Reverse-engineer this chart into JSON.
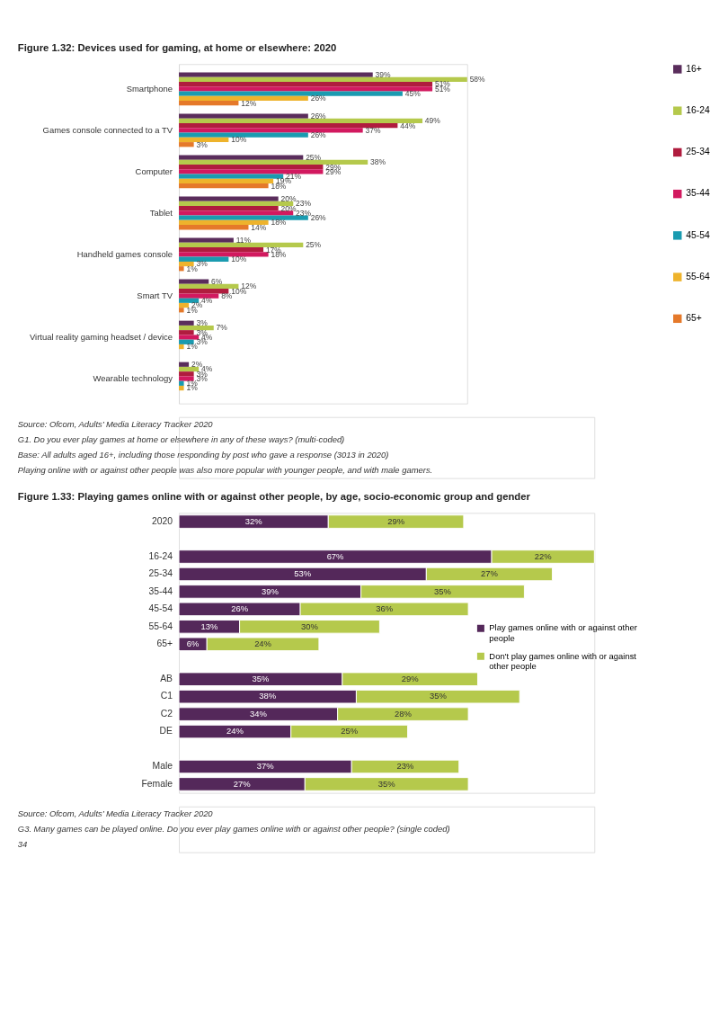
{
  "chart_data": [
    {
      "type": "bar",
      "orientation": "horizontal",
      "title": "Figure 1.32: Devices used for gaming, at home or elsewhere: 2020",
      "categories": [
        "Smartphone",
        "Games console connected to a TV",
        "Computer",
        "Tablet",
        "Handheld games console",
        "Smart TV",
        "Virtual reality gaming headset / device",
        "Wearable technology"
      ],
      "series": [
        {
          "name": "16+",
          "color": "#5a2d5c",
          "values": [
            39,
            26,
            25,
            20,
            11,
            6,
            3,
            2
          ],
          "value_labels": [
            "39%",
            "26%",
            "25%",
            "20%",
            "11%",
            "6%",
            "3%",
            "2%"
          ]
        },
        {
          "name": "16-24",
          "color": "#b5c94c",
          "values": [
            58,
            49,
            38,
            23,
            25,
            12,
            7,
            4
          ],
          "value_labels": [
            "58%",
            "49%",
            "38%",
            "23%",
            "25%",
            "12%",
            "7%",
            "4%"
          ]
        },
        {
          "name": "25-34",
          "color": "#b01c3e",
          "values": [
            51,
            44,
            29,
            20,
            17,
            10,
            3,
            3
          ],
          "value_labels": [
            "51%",
            "44%",
            "29%",
            "20%",
            "17%",
            "10%",
            "3%",
            "3%"
          ]
        },
        {
          "name": "35-44",
          "color": "#d2195f",
          "values": [
            51,
            37,
            29,
            23,
            18,
            8,
            4,
            3
          ],
          "value_labels": [
            "51%",
            "37%",
            "29%",
            "23%",
            "18%",
            "8%",
            "4%",
            "3%"
          ]
        },
        {
          "name": "45-54",
          "color": "#1a9bb0",
          "values": [
            45,
            26,
            21,
            26,
            10,
            4,
            3,
            1
          ],
          "value_labels": [
            "45%",
            "26%",
            "21%",
            "26%",
            "10%",
            "4%",
            "3%",
            "1%"
          ]
        },
        {
          "name": "55-64",
          "color": "#eeb32c",
          "values": [
            26,
            10,
            19,
            18,
            3,
            2,
            1,
            1
          ],
          "value_labels": [
            "26%",
            "10%",
            "19%",
            "18%",
            "3%",
            "2%",
            "1%",
            "1%"
          ]
        },
        {
          "name": "65+",
          "color": "#e5792a",
          "values": [
            12,
            3,
            18,
            14,
            1,
            1,
            null,
            null
          ],
          "value_labels": [
            "12%",
            "3%",
            "18%",
            "14%",
            "1%",
            "1%",
            null,
            null
          ]
        }
      ],
      "legend": "right",
      "annotations": [
        "Source: Ofcom, Adults’ Media Literacy Tracker 2020",
        "G1. Do you ever play games at home or elsewhere in any of these ways? (multi-coded)",
        "Base: All adults aged 16+, including those responding by post who gave a response (3013 in 2020)",
        "Playing online with or against other people was also more popular with younger people, and with male gamers."
      ]
    },
    {
      "type": "bar",
      "orientation": "horizontal",
      "stacked": true,
      "title": "Figure 1.33: Playing games online with or against other people, by age, socio-economic group and gender",
      "categories": [
        "2020",
        null,
        "16-24",
        "25-34",
        "35-44",
        "45-54",
        "55-64",
        "65+",
        null,
        "AB",
        "C1",
        "C2",
        "DE",
        null,
        "Male",
        "Female"
      ],
      "series": [
        {
          "name": "Play games online with or against other people",
          "color": "#54285a",
          "values": [
            32,
            null,
            67,
            53,
            39,
            26,
            13,
            6,
            null,
            35,
            38,
            34,
            24,
            null,
            37,
            27
          ],
          "value_labels": [
            "32%",
            null,
            "67%",
            "53%",
            "39%",
            "26%",
            "13%",
            "6%",
            null,
            "35%",
            "38%",
            "34%",
            "24%",
            null,
            "37%",
            "27%"
          ]
        },
        {
          "name": "Don't play games online with or against other people",
          "color": "#b5c94c",
          "values": [
            29,
            null,
            22,
            27,
            35,
            36,
            30,
            24,
            null,
            29,
            35,
            28,
            25,
            null,
            23,
            35
          ],
          "value_labels": [
            "29%",
            null,
            "22%",
            "27%",
            "35%",
            "36%",
            "30%",
            "24%",
            null,
            "29%",
            "35%",
            "28%",
            "25%",
            null,
            "23%",
            "35%"
          ]
        }
      ],
      "legend": "right",
      "annotations": [
        "Source: Ofcom, Adults’ Media Literacy Tracker 2020",
        "G3. Many games can be played online. Do you ever play games online with or against other people? (single coded)",
        "34"
      ]
    }
  ]
}
